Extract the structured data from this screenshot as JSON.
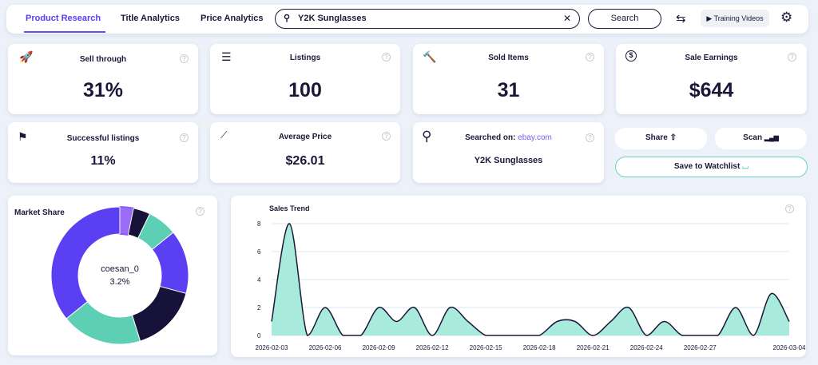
{
  "nav": {
    "tabs": [
      "Product Research",
      "Title Analytics",
      "Price Analytics"
    ],
    "active": 0,
    "search_value": "Y2K Sunglasses",
    "search_button": "Search",
    "training_videos": "Training Videos"
  },
  "stats": {
    "sell_through": {
      "label": "Sell through",
      "value": "31%"
    },
    "listings": {
      "label": "Listings",
      "value": "100"
    },
    "sold_items": {
      "label": "Sold Items",
      "value": "31"
    },
    "sale_earnings": {
      "label": "Sale Earnings",
      "value": "$644"
    },
    "successful_listings": {
      "label": "Successful listings",
      "value": "11%"
    },
    "average_price": {
      "label": "Average Price",
      "value": "$26.01"
    },
    "searched_on": {
      "label": "Searched on:",
      "site": "ebay.com",
      "query": "Y2K Sunglasses"
    }
  },
  "actions": {
    "share": "Share",
    "scan": "Scan",
    "watchlist": "Save to Watchlist"
  },
  "chart_data": [
    {
      "type": "pie",
      "title": "Market Share",
      "donut": true,
      "center_label": {
        "name": "coesan_0",
        "value": "3.2%"
      },
      "values": [
        3.2,
        4,
        7,
        15,
        16,
        19,
        35.8
      ],
      "colors": [
        "#9a6cf7",
        "#16123a",
        "#5dcfb4",
        "#5b3ff3",
        "#16123a",
        "#5dcfb4",
        "#5b3ff3"
      ]
    },
    {
      "type": "area",
      "title": "Sales Trend",
      "ylim": [
        0,
        8
      ],
      "yticks": [
        0,
        2,
        4,
        6,
        8
      ],
      "grid": true,
      "color": "#a8eadc",
      "line_color": "#1a1838",
      "x": [
        "2026-02-03",
        "2026-02-04",
        "2026-02-05",
        "2026-02-06",
        "2026-02-07",
        "2026-02-08",
        "2026-02-09",
        "2026-02-10",
        "2026-02-11",
        "2026-02-12",
        "2026-02-13",
        "2026-02-14",
        "2026-02-15",
        "2026-02-16",
        "2026-02-17",
        "2026-02-18",
        "2026-02-19",
        "2026-02-20",
        "2026-02-21",
        "2026-02-22",
        "2026-02-23",
        "2026-02-24",
        "2026-02-25",
        "2026-02-26",
        "2026-02-27",
        "2026-02-28",
        "2026-03-01",
        "2026-03-02",
        "2026-03-03",
        "2026-03-04"
      ],
      "y": [
        1,
        8,
        0,
        2,
        0,
        0,
        2,
        1,
        2,
        0,
        2,
        1,
        0,
        0,
        0,
        0,
        1,
        1,
        0,
        1,
        2,
        0,
        1,
        0,
        0,
        0,
        2,
        0,
        3,
        1
      ],
      "xticks": [
        "2026-02-03",
        "2026-02-06",
        "2026-02-09",
        "2026-02-12",
        "2026-02-15",
        "2026-02-18",
        "2026-02-21",
        "2026-02-24",
        "2026-02-27",
        "2026-03-04"
      ]
    }
  ]
}
